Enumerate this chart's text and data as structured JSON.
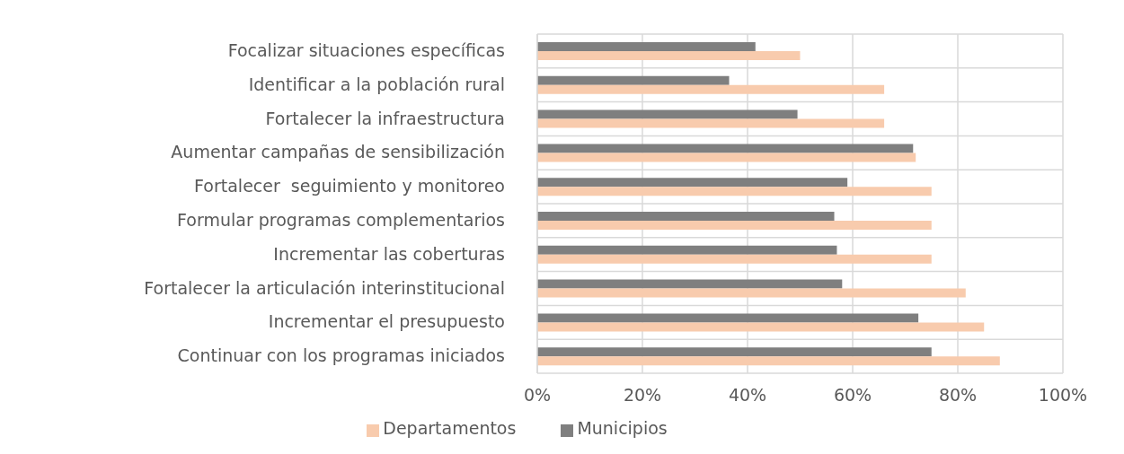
{
  "chart_data": {
    "type": "bar",
    "orientation": "horizontal",
    "categories": [
      "Focalizar situaciones específicas",
      "Identificar a la población rural",
      "Fortalecer la infraestructura",
      "Aumentar campañas de sensibilización",
      "Fortalecer  seguimiento y monitoreo",
      "Formular programas complementarios",
      "Incrementar las coberturas",
      "Fortalecer la articulación interinstitucional",
      "Incrementar el presupuesto",
      "Continuar con los programas iniciados"
    ],
    "series": [
      {
        "name": "Municipios",
        "color": "#7f7f7f",
        "values": [
          41.5,
          36.5,
          49.5,
          71.5,
          59,
          56.5,
          57,
          58,
          72.5,
          75
        ]
      },
      {
        "name": "Departamentos",
        "color": "#f8cbad",
        "values": [
          50,
          66,
          66,
          72,
          75,
          75,
          75,
          81.5,
          85,
          88
        ]
      }
    ],
    "xlim": [
      0,
      100
    ],
    "xticks": [
      {
        "value": 0,
        "label": "0%"
      },
      {
        "value": 20,
        "label": "20%"
      },
      {
        "value": 40,
        "label": "40%"
      },
      {
        "value": 60,
        "label": "60%"
      },
      {
        "value": 80,
        "label": "80%"
      },
      {
        "value": 100,
        "label": "100%"
      }
    ],
    "grid": true,
    "legend": "bottom"
  }
}
